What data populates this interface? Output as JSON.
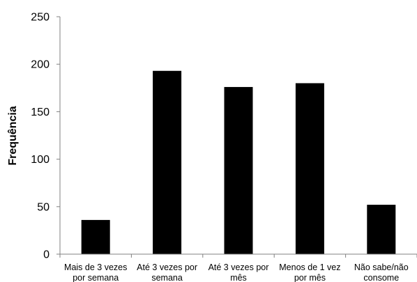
{
  "chart_data": {
    "type": "bar",
    "title": "",
    "xlabel": "",
    "ylabel": "Frequência",
    "ylim": [
      0,
      250
    ],
    "yticks": [
      0,
      50,
      100,
      150,
      200,
      250
    ],
    "grid": false,
    "legend": "none",
    "categories": [
      [
        "Mais de 3 vezes",
        "por semana"
      ],
      [
        "Até 3 vezes por",
        "semana"
      ],
      [
        "Até 3 vezes por",
        "mês"
      ],
      [
        "Menos de 1 vez",
        "por mês"
      ],
      [
        "Não sabe/não",
        "consome"
      ]
    ],
    "values": [
      36,
      193,
      176,
      180,
      52
    ],
    "bar_color": "#000000",
    "axis_color": "#808080"
  }
}
